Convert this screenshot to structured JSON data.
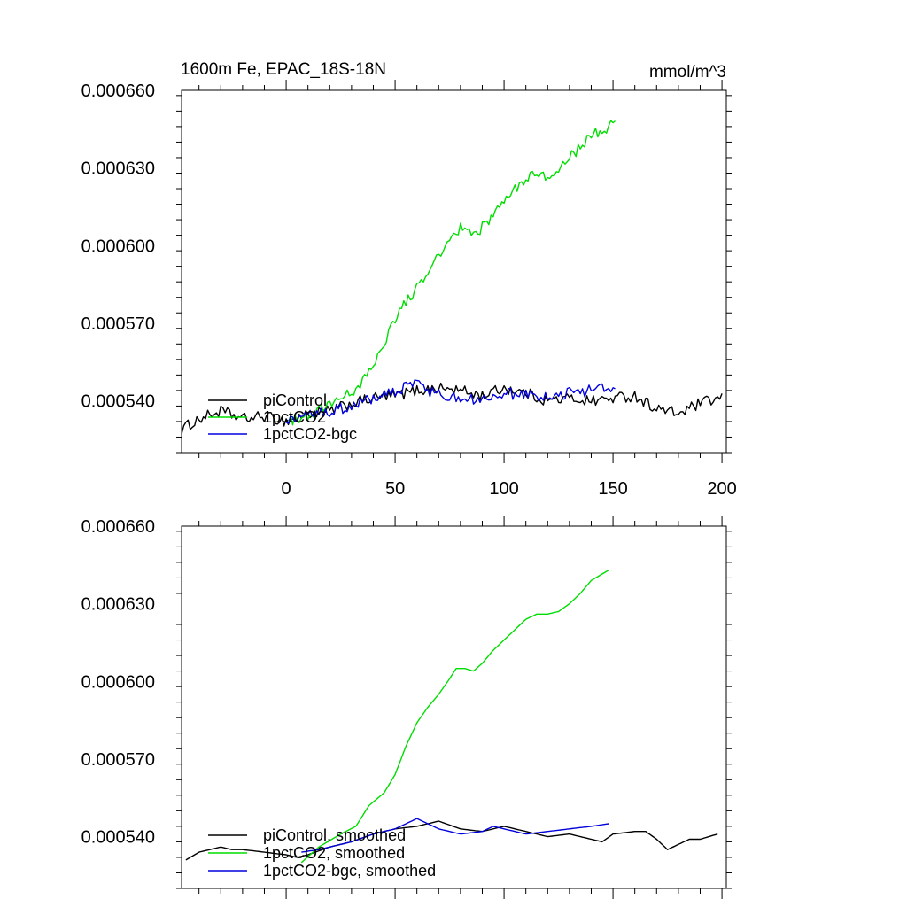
{
  "colors": {
    "piControl": "#000000",
    "1pctCO2": "#00dd00",
    "1pctCO2-bgc": "#0000dd"
  },
  "chart_data": [
    {
      "type": "line",
      "title_left": "1600m Fe, EPAC_18S-18N",
      "title_right": "mmol/m^3",
      "xlim": [
        -48,
        202
      ],
      "ylim": [
        0.00052,
        0.00066
      ],
      "xticks": [
        0,
        50,
        100,
        150,
        200
      ],
      "xtick_labels": [
        "0",
        "50",
        "100",
        "150",
        "200"
      ],
      "yticks": [
        0.00054,
        0.00057,
        0.0006,
        0.00063,
        0.00066
      ],
      "ytick_labels": [
        "0.000540",
        "0.000570",
        "0.000600",
        "0.000630",
        "0.000660"
      ],
      "series": [
        {
          "name": "piControl",
          "color": "#000000",
          "x_start": -48,
          "x_end": 200,
          "keypoints": [
            [
              -48,
              0.000529
            ],
            [
              -40,
              0.000533
            ],
            [
              -30,
              0.000536
            ],
            [
              -20,
              0.000533
            ],
            [
              -10,
              0.000534
            ],
            [
              0,
              0.000532
            ],
            [
              10,
              0.000535
            ],
            [
              20,
              0.000536
            ],
            [
              30,
              0.000539
            ],
            [
              40,
              0.000541
            ],
            [
              50,
              0.000542
            ],
            [
              60,
              0.000544
            ],
            [
              70,
              0.000545
            ],
            [
              80,
              0.000544
            ],
            [
              90,
              0.000542
            ],
            [
              100,
              0.000545
            ],
            [
              110,
              0.000543
            ],
            [
              120,
              0.00054
            ],
            [
              130,
              0.000541
            ],
            [
              140,
              0.00054
            ],
            [
              150,
              0.000541
            ],
            [
              160,
              0.000542
            ],
            [
              170,
              0.000537
            ],
            [
              180,
              0.000535
            ],
            [
              190,
              0.000539
            ],
            [
              200,
              0.000541
            ]
          ],
          "noise": 2.2e-06
        },
        {
          "name": "1pctCO2",
          "color": "#00dd00",
          "x_start": 0,
          "x_end": 151,
          "keypoints": [
            [
              0,
              0.000532
            ],
            [
              10,
              0.000534
            ],
            [
              20,
              0.000538
            ],
            [
              30,
              0.000543
            ],
            [
              35,
              0.000548
            ],
            [
              40,
              0.000555
            ],
            [
              45,
              0.000562
            ],
            [
              50,
              0.000572
            ],
            [
              55,
              0.000578
            ],
            [
              60,
              0.000584
            ],
            [
              65,
              0.000591
            ],
            [
              70,
              0.000596
            ],
            [
              75,
              0.000601
            ],
            [
              80,
              0.000607
            ],
            [
              85,
              0.000604
            ],
            [
              90,
              0.000607
            ],
            [
              95,
              0.000612
            ],
            [
              100,
              0.000617
            ],
            [
              105,
              0.000622
            ],
            [
              110,
              0.000626
            ],
            [
              115,
              0.000627
            ],
            [
              120,
              0.000627
            ],
            [
              125,
              0.000629
            ],
            [
              130,
              0.000634
            ],
            [
              135,
              0.000638
            ],
            [
              140,
              0.000642
            ],
            [
              145,
              0.000645
            ],
            [
              151,
              0.000647
            ]
          ],
          "noise": 2.2e-06
        },
        {
          "name": "1pctCO2-bgc",
          "color": "#0000dd",
          "x_start": 0,
          "x_end": 151,
          "keypoints": [
            [
              0,
              0.000533
            ],
            [
              10,
              0.000534
            ],
            [
              20,
              0.000536
            ],
            [
              30,
              0.000538
            ],
            [
              40,
              0.000541
            ],
            [
              50,
              0.000543
            ],
            [
              55,
              0.000546
            ],
            [
              60,
              0.000547
            ],
            [
              65,
              0.000544
            ],
            [
              70,
              0.000543
            ],
            [
              80,
              0.00054
            ],
            [
              90,
              0.000541
            ],
            [
              100,
              0.000543
            ],
            [
              110,
              0.000542
            ],
            [
              120,
              0.000541
            ],
            [
              130,
              0.000543
            ],
            [
              140,
              0.000544
            ],
            [
              145,
              0.000545
            ],
            [
              151,
              0.000544
            ]
          ],
          "noise": 2.2e-06
        }
      ],
      "legend": {
        "placement": "bottom-left",
        "entries": [
          {
            "label": "piControl",
            "color": "#000000"
          },
          {
            "label": "1pctCO2",
            "color": "#00dd00"
          },
          {
            "label": "1pctCO2-bgc",
            "color": "#0000dd"
          }
        ]
      }
    },
    {
      "type": "line",
      "xlim": [
        -48,
        202
      ],
      "ylim": [
        0.00052,
        0.00066
      ],
      "xticks": [
        0,
        50,
        100,
        150,
        200
      ],
      "yticks": [
        0.00054,
        0.00057,
        0.0006,
        0.00063,
        0.00066
      ],
      "ytick_labels": [
        "0.000540",
        "0.000570",
        "0.000600",
        "0.000630",
        "0.000660"
      ],
      "series": [
        {
          "name": "piControl, smoothed",
          "color": "#000000",
          "x_start": -46,
          "x_end": 198,
          "keypoints": [
            [
              -46,
              0.000531
            ],
            [
              -40,
              0.000534
            ],
            [
              -35,
              0.000535
            ],
            [
              -30,
              0.000536
            ],
            [
              -25,
              0.000535
            ],
            [
              -20,
              0.000535
            ],
            [
              -10,
              0.000534
            ],
            [
              0,
              0.000533
            ],
            [
              5,
              0.000532
            ],
            [
              10,
              0.000533
            ],
            [
              20,
              0.000536
            ],
            [
              30,
              0.000538
            ],
            [
              40,
              0.000541
            ],
            [
              50,
              0.000543
            ],
            [
              60,
              0.000544
            ],
            [
              65,
              0.000545
            ],
            [
              70,
              0.000546
            ],
            [
              80,
              0.000543
            ],
            [
              90,
              0.000542
            ],
            [
              100,
              0.000544
            ],
            [
              110,
              0.000542
            ],
            [
              120,
              0.00054
            ],
            [
              130,
              0.000541
            ],
            [
              140,
              0.000539
            ],
            [
              145,
              0.000538
            ],
            [
              150,
              0.000541
            ],
            [
              160,
              0.000542
            ],
            [
              165,
              0.000542
            ],
            [
              170,
              0.000539
            ],
            [
              175,
              0.000535
            ],
            [
              180,
              0.000537
            ],
            [
              185,
              0.000539
            ],
            [
              190,
              0.000539
            ],
            [
              198,
              0.000541
            ]
          ],
          "noise": 0
        },
        {
          "name": "1pctCO2, smoothed",
          "color": "#00dd00",
          "x_start": 7,
          "x_end": 148,
          "keypoints": [
            [
              7,
              0.00053
            ],
            [
              15,
              0.000536
            ],
            [
              25,
              0.000541
            ],
            [
              32,
              0.000544
            ],
            [
              38,
              0.000552
            ],
            [
              45,
              0.000557
            ],
            [
              50,
              0.000564
            ],
            [
              55,
              0.000575
            ],
            [
              60,
              0.000584
            ],
            [
              65,
              0.00059
            ],
            [
              70,
              0.000595
            ],
            [
              75,
              0.000601
            ],
            [
              78,
              0.000605
            ],
            [
              82,
              0.000605
            ],
            [
              86,
              0.000604
            ],
            [
              90,
              0.000607
            ],
            [
              95,
              0.000612
            ],
            [
              100,
              0.000616
            ],
            [
              105,
              0.00062
            ],
            [
              110,
              0.000624
            ],
            [
              115,
              0.000626
            ],
            [
              120,
              0.000626
            ],
            [
              125,
              0.000627
            ],
            [
              130,
              0.00063
            ],
            [
              135,
              0.000634
            ],
            [
              140,
              0.000639
            ],
            [
              148,
              0.000643
            ]
          ],
          "noise": 0
        },
        {
          "name": "1pctCO2-bgc, smoothed",
          "color": "#0000dd",
          "x_start": 7,
          "x_end": 148,
          "keypoints": [
            [
              7,
              0.000534
            ],
            [
              15,
              0.000535
            ],
            [
              20,
              0.000536
            ],
            [
              30,
              0.000538
            ],
            [
              40,
              0.000541
            ],
            [
              50,
              0.000543
            ],
            [
              55,
              0.000545
            ],
            [
              60,
              0.000547
            ],
            [
              65,
              0.000545
            ],
            [
              70,
              0.000543
            ],
            [
              80,
              0.000541
            ],
            [
              90,
              0.000542
            ],
            [
              95,
              0.000544
            ],
            [
              100,
              0.000543
            ],
            [
              110,
              0.000541
            ],
            [
              120,
              0.000542
            ],
            [
              130,
              0.000543
            ],
            [
              140,
              0.000544
            ],
            [
              148,
              0.000545
            ]
          ],
          "noise": 0
        }
      ],
      "legend": {
        "placement": "bottom-left",
        "entries": [
          {
            "label": "piControl, smoothed",
            "color": "#000000"
          },
          {
            "label": "1pctCO2, smoothed",
            "color": "#00dd00"
          },
          {
            "label": "1pctCO2-bgc, smoothed",
            "color": "#0000dd"
          }
        ]
      }
    }
  ]
}
